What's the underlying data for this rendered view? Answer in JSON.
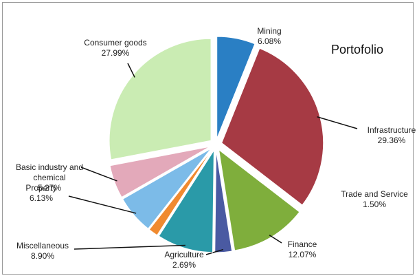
{
  "chart_data": {
    "type": "pie",
    "title": "Portofolio",
    "categories": [
      "Mining",
      "Infrastructure",
      "Finance",
      "Agriculture",
      "Miscellaneous",
      "Trade and Service",
      "Property",
      "Basic industry and chemical",
      "Consumer goods"
    ],
    "values": [
      6.08,
      29.36,
      12.07,
      2.69,
      8.9,
      1.5,
      6.13,
      5.27,
      27.99
    ],
    "value_labels": [
      "6.08%",
      "29.36%",
      "12.07%",
      "2.69%",
      "8.90%",
      "1.50%",
      "6.13%",
      "5.27%",
      "27.99%"
    ],
    "colors": [
      "#2a7fc4",
      "#a63a44",
      "#7fae3c",
      "#4a5aa2",
      "#2a9aa8",
      "#f08a30",
      "#7cbbe8",
      "#e3a9ba",
      "#caecb3"
    ]
  }
}
